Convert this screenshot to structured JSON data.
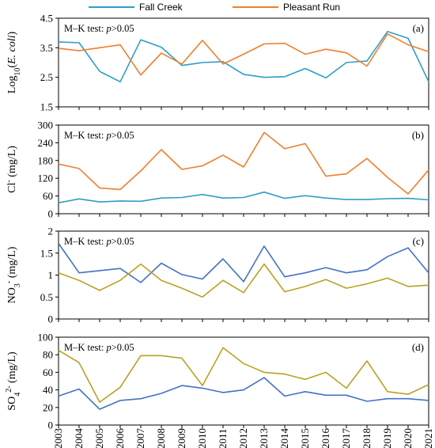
{
  "legend": {
    "series_a": "Fall Creek",
    "series_b": "Pleasant Run",
    "color_a": "#2E9EC9",
    "color_b": "#F07F2C"
  },
  "chart_data": [
    {
      "type": "line",
      "panel_label": "(a)",
      "annotation": "M–K test: p>0.05",
      "ylabel": "Log10(E. coli)",
      "ylim": [
        1.5,
        4.5
      ],
      "yticks": [
        "1.5",
        "2.5",
        "3.5",
        "4.5"
      ],
      "x": [
        "2003",
        "2004",
        "2005",
        "2006",
        "2007",
        "2008",
        "2009",
        "2010",
        "2011",
        "2012",
        "2013",
        "2014",
        "2015",
        "2016",
        "2017",
        "2018",
        "2019",
        "2020",
        "2021"
      ],
      "series": [
        {
          "name": "Fall Creek",
          "color": "#2E9EC9",
          "values": [
            3.7,
            3.67,
            2.7,
            2.35,
            3.77,
            3.52,
            2.9,
            3.0,
            3.03,
            2.6,
            2.5,
            2.52,
            2.8,
            2.48,
            3.0,
            3.05,
            4.05,
            3.82,
            2.35
          ]
        },
        {
          "name": "Pleasant Run",
          "color": "#F07F2C",
          "values": [
            3.48,
            3.4,
            3.5,
            3.6,
            2.58,
            3.32,
            2.95,
            3.75,
            2.95,
            3.28,
            3.63,
            3.65,
            3.28,
            3.45,
            3.33,
            2.88,
            3.97,
            3.6,
            3.37
          ]
        }
      ]
    },
    {
      "type": "line",
      "panel_label": "(b)",
      "annotation": "M–K test: p>0.05",
      "ylabel": "Cl- (mg/L)",
      "ylim": [
        0,
        300
      ],
      "yticks": [
        "0",
        "60",
        "120",
        "180",
        "240",
        "300"
      ],
      "x": [
        "2003",
        "2004",
        "2005",
        "2006",
        "2007",
        "2008",
        "2009",
        "2010",
        "2011",
        "2012",
        "2013",
        "2014",
        "2015",
        "2016",
        "2017",
        "2018",
        "2019",
        "2020",
        "2021"
      ],
      "series": [
        {
          "name": "Fall Creek",
          "color": "#2E9EC9",
          "values": [
            37,
            50,
            40,
            43,
            42,
            53,
            55,
            65,
            53,
            55,
            73,
            52,
            61,
            53,
            48,
            48,
            51,
            52,
            47
          ]
        },
        {
          "name": "Pleasant Run",
          "color": "#F07F2C",
          "values": [
            168,
            153,
            87,
            82,
            145,
            217,
            150,
            162,
            198,
            158,
            275,
            220,
            237,
            127,
            135,
            187,
            123,
            67,
            148
          ]
        }
      ]
    },
    {
      "type": "line",
      "panel_label": "(c)",
      "annotation": "M–K test: p>0.05",
      "ylabel": "NO3- (mg/L)",
      "ylim": [
        0,
        2
      ],
      "yticks": [
        "0",
        "0.5",
        "1",
        "1.5",
        "2"
      ],
      "x": [
        "2003",
        "2004",
        "2005",
        "2006",
        "2007",
        "2008",
        "2009",
        "2010",
        "2011",
        "2012",
        "2013",
        "2014",
        "2015",
        "2016",
        "2017",
        "2018",
        "2019",
        "2020",
        "2021"
      ],
      "series": [
        {
          "name": "Fall Creek",
          "color": "#4472C4",
          "values": [
            1.72,
            1.05,
            1.1,
            1.15,
            0.83,
            1.27,
            1.01,
            0.91,
            1.37,
            0.85,
            1.66,
            0.96,
            1.05,
            1.17,
            1.05,
            1.12,
            1.42,
            1.62,
            1.05
          ]
        },
        {
          "name": "Pleasant Run",
          "color": "#B8A224",
          "values": [
            1.05,
            0.88,
            0.65,
            0.88,
            1.25,
            0.88,
            0.7,
            0.5,
            0.88,
            0.6,
            1.25,
            0.62,
            0.74,
            0.9,
            0.7,
            0.8,
            0.93,
            0.74,
            0.77
          ]
        }
      ]
    },
    {
      "type": "line",
      "panel_label": "(d)",
      "annotation": "M–K test: p>0.05",
      "ylabel": "SO42- (mg/L)",
      "ylim": [
        0,
        100
      ],
      "yticks": [
        "0",
        "20",
        "40",
        "60",
        "80",
        "100"
      ],
      "x": [
        "2003",
        "2004",
        "2005",
        "2006",
        "2007",
        "2008",
        "2009",
        "2010",
        "2011",
        "2012",
        "2013",
        "2014",
        "2015",
        "2016",
        "2017",
        "2018",
        "2019",
        "2020",
        "2021"
      ],
      "series": [
        {
          "name": "Fall Creek",
          "color": "#4472C4",
          "values": [
            33,
            41,
            18,
            28,
            30,
            36,
            45,
            42,
            37,
            40,
            54,
            33,
            38,
            34,
            34,
            27,
            30,
            30,
            28
          ]
        },
        {
          "name": "Pleasant Run",
          "color": "#B8A224",
          "values": [
            85,
            71,
            26,
            43,
            79,
            79,
            76,
            45,
            88,
            70,
            60,
            58,
            52,
            60,
            42,
            73,
            38,
            35,
            46
          ]
        }
      ]
    }
  ]
}
